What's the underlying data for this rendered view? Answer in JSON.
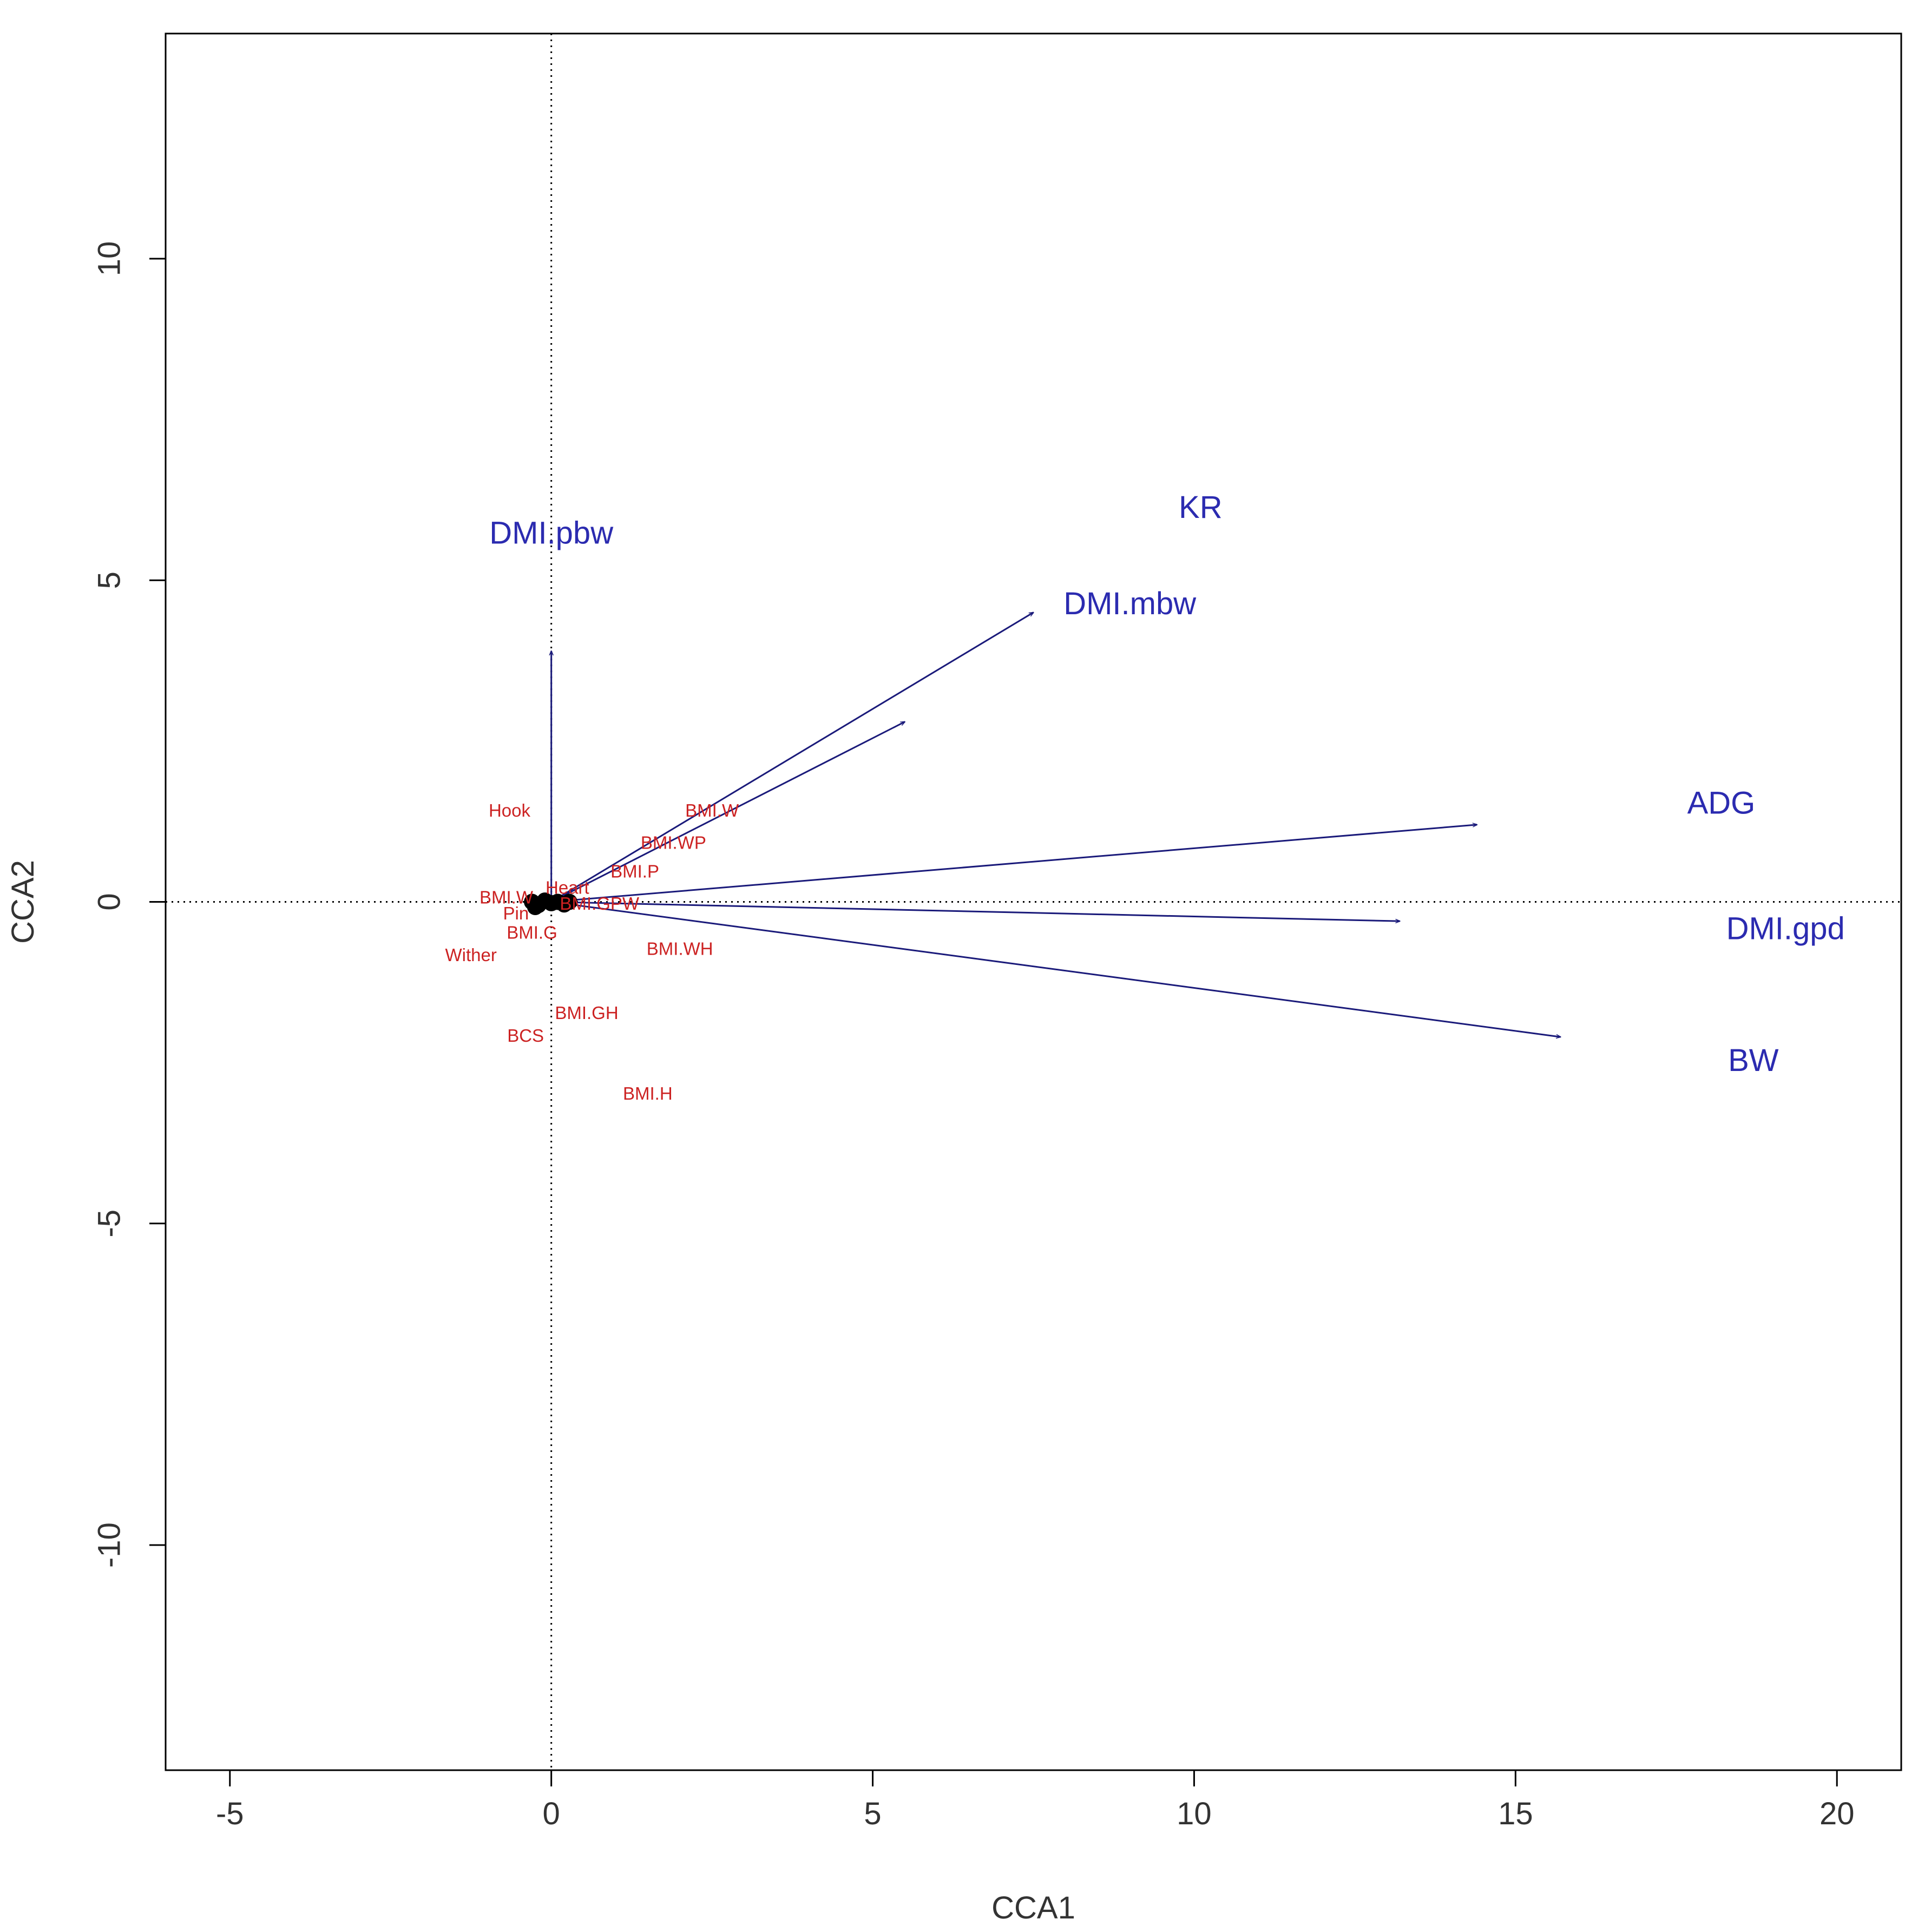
{
  "chart_data": {
    "type": "biplot",
    "title": "",
    "xlabel": "CCA1",
    "ylabel": "CCA2",
    "xlim": [
      -6,
      21
    ],
    "ylim": [
      -13.5,
      13.5
    ],
    "xticks": [
      -5,
      0,
      5,
      10,
      15,
      20
    ],
    "yticks": [
      -10,
      -5,
      0,
      5,
      10
    ],
    "xtick_labels": [
      "-5",
      "0",
      "5",
      "10",
      "15",
      "20"
    ],
    "ytick_labels": [
      "-10",
      "-5",
      "0",
      "5",
      "10"
    ],
    "reference_lines": {
      "x": 0,
      "y": 0,
      "style": "dotted"
    },
    "colors": {
      "arrows": "#1a1a7a",
      "variable_labels": "#2b2bb0",
      "site_labels": "#cc2222",
      "points": "#000000",
      "axes": "#000000"
    },
    "biplot_arrows": [
      {
        "name": "DMI.pbw",
        "x": 0.0,
        "y": 3.9,
        "label": "DMI.pbw",
        "label_x": 0.0,
        "label_y": 5.7
      },
      {
        "name": "KR",
        "x": 5.5,
        "y": 2.8,
        "label": "KR",
        "label_x": 10.1,
        "label_y": 6.1
      },
      {
        "name": "DMI.mbw",
        "x": 7.5,
        "y": 4.5,
        "label": "DMI.mbw",
        "label_x": 9.0,
        "label_y": 4.6
      },
      {
        "name": "ADG",
        "x": 14.4,
        "y": 1.2,
        "label": "ADG",
        "label_x": 18.2,
        "label_y": 1.5
      },
      {
        "name": "DMI.gpd",
        "x": 13.2,
        "y": -0.3,
        "label": "DMI.gpd",
        "label_x": 19.2,
        "label_y": -0.45
      },
      {
        "name": "BW",
        "x": 15.7,
        "y": -2.1,
        "label": "BW",
        "label_x": 18.7,
        "label_y": -2.5
      }
    ],
    "species_labels": [
      {
        "label": "Hook",
        "x": -0.65,
        "y": 1.4
      },
      {
        "label": "BMI.W",
        "x": 2.5,
        "y": 1.4
      },
      {
        "label": "BMI.WP",
        "x": 1.9,
        "y": 0.9
      },
      {
        "label": "BMI.P",
        "x": 1.3,
        "y": 0.45
      },
      {
        "label": "Heart",
        "x": 0.25,
        "y": 0.2
      },
      {
        "label": "BMI.W",
        "x": -0.7,
        "y": 0.05
      },
      {
        "label": "Pin",
        "x": -0.55,
        "y": -0.2
      },
      {
        "label": "BMI.GPW",
        "x": 0.75,
        "y": -0.05
      },
      {
        "label": "BMI.G",
        "x": -0.3,
        "y": -0.5
      },
      {
        "label": "Wither",
        "x": -1.25,
        "y": -0.85
      },
      {
        "label": "BMI.WH",
        "x": 2.0,
        "y": -0.75
      },
      {
        "label": "BMI.GH",
        "x": 0.55,
        "y": -1.75
      },
      {
        "label": "BCS",
        "x": -0.4,
        "y": -2.1
      },
      {
        "label": "BMI.H",
        "x": 1.5,
        "y": -3.0
      }
    ],
    "points": [
      {
        "x": -0.3,
        "y": 0.0
      },
      {
        "x": -0.2,
        "y": -0.05
      },
      {
        "x": -0.1,
        "y": 0.02
      },
      {
        "x": 0.0,
        "y": -0.02
      },
      {
        "x": 0.1,
        "y": 0.0
      },
      {
        "x": 0.2,
        "y": -0.04
      },
      {
        "x": 0.28,
        "y": 0.0
      },
      {
        "x": -0.25,
        "y": -0.08
      }
    ]
  }
}
